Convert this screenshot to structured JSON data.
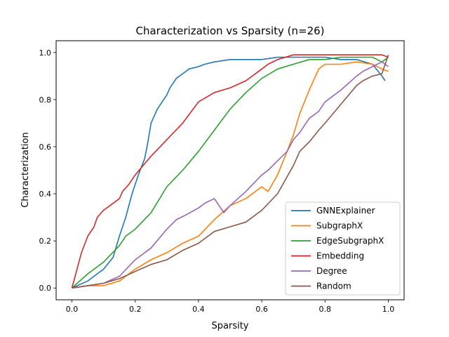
{
  "chart_data": {
    "type": "line",
    "title": "Characterization vs Sparsity (n=26)",
    "xlabel": "Sparsity",
    "ylabel": "Characterization",
    "xlim": [
      -0.05,
      1.05
    ],
    "ylim": [
      -0.05,
      1.05
    ],
    "xticks": [
      0.0,
      0.2,
      0.4,
      0.6,
      0.8,
      1.0
    ],
    "xtick_labels": [
      "0.0",
      "0.2",
      "0.4",
      "0.6",
      "0.8",
      "1.0"
    ],
    "yticks": [
      0.0,
      0.2,
      0.4,
      0.6,
      0.8,
      1.0
    ],
    "ytick_labels": [
      "0.0",
      "0.2",
      "0.4",
      "0.6",
      "0.8",
      "1.0"
    ],
    "grid": false,
    "legend_position": "lower right",
    "series": [
      {
        "name": "GNNExplainer",
        "color": "#1f77b4",
        "x": [
          0.0,
          0.05,
          0.1,
          0.13,
          0.15,
          0.17,
          0.19,
          0.21,
          0.23,
          0.24,
          0.25,
          0.26,
          0.27,
          0.28,
          0.3,
          0.31,
          0.33,
          0.35,
          0.37,
          0.4,
          0.42,
          0.45,
          0.5,
          0.55,
          0.6,
          0.65,
          0.7,
          0.75,
          0.8,
          0.85,
          0.9,
          0.95,
          0.98,
          0.99
        ],
        "y": [
          0.0,
          0.03,
          0.08,
          0.13,
          0.22,
          0.3,
          0.4,
          0.48,
          0.55,
          0.62,
          0.7,
          0.73,
          0.76,
          0.78,
          0.82,
          0.85,
          0.89,
          0.91,
          0.93,
          0.94,
          0.95,
          0.96,
          0.97,
          0.97,
          0.97,
          0.98,
          0.98,
          0.98,
          0.98,
          0.97,
          0.97,
          0.95,
          0.9,
          0.88
        ]
      },
      {
        "name": "SubgraphX",
        "color": "#ff7f0e",
        "x": [
          0.0,
          0.05,
          0.1,
          0.15,
          0.2,
          0.25,
          0.3,
          0.35,
          0.4,
          0.45,
          0.5,
          0.55,
          0.6,
          0.62,
          0.65,
          0.68,
          0.7,
          0.72,
          0.75,
          0.78,
          0.8,
          0.85,
          0.9,
          0.95,
          0.98,
          1.0
        ],
        "y": [
          0.0,
          0.01,
          0.01,
          0.03,
          0.08,
          0.12,
          0.15,
          0.19,
          0.22,
          0.29,
          0.35,
          0.38,
          0.43,
          0.41,
          0.48,
          0.58,
          0.65,
          0.74,
          0.84,
          0.93,
          0.95,
          0.95,
          0.96,
          0.95,
          0.93,
          0.92
        ]
      },
      {
        "name": "EdgeSubgraphX",
        "color": "#2ca02c",
        "x": [
          0.0,
          0.05,
          0.1,
          0.15,
          0.17,
          0.2,
          0.25,
          0.3,
          0.35,
          0.4,
          0.45,
          0.5,
          0.55,
          0.6,
          0.65,
          0.7,
          0.75,
          0.8,
          0.85,
          0.9,
          0.95,
          0.98,
          1.0
        ],
        "y": [
          0.0,
          0.06,
          0.11,
          0.18,
          0.22,
          0.25,
          0.32,
          0.43,
          0.5,
          0.58,
          0.67,
          0.76,
          0.83,
          0.89,
          0.93,
          0.95,
          0.97,
          0.97,
          0.98,
          0.98,
          0.98,
          0.96,
          0.98
        ]
      },
      {
        "name": "Embedding",
        "color": "#d62728",
        "x": [
          0.0,
          0.01,
          0.02,
          0.03,
          0.05,
          0.07,
          0.08,
          0.1,
          0.12,
          0.15,
          0.16,
          0.18,
          0.2,
          0.25,
          0.3,
          0.35,
          0.4,
          0.45,
          0.5,
          0.55,
          0.6,
          0.62,
          0.65,
          0.7,
          0.75,
          0.8,
          0.85,
          0.9,
          0.95,
          0.98,
          1.0
        ],
        "y": [
          0.0,
          0.05,
          0.1,
          0.15,
          0.22,
          0.26,
          0.3,
          0.33,
          0.35,
          0.38,
          0.41,
          0.44,
          0.48,
          0.56,
          0.63,
          0.7,
          0.79,
          0.83,
          0.85,
          0.88,
          0.93,
          0.95,
          0.97,
          0.99,
          0.99,
          0.99,
          0.99,
          0.99,
          0.99,
          0.99,
          0.98
        ]
      },
      {
        "name": "Degree",
        "color": "#9467bd",
        "x": [
          0.0,
          0.05,
          0.1,
          0.15,
          0.2,
          0.25,
          0.3,
          0.33,
          0.36,
          0.4,
          0.42,
          0.45,
          0.48,
          0.5,
          0.55,
          0.6,
          0.62,
          0.65,
          0.68,
          0.7,
          0.72,
          0.75,
          0.78,
          0.8,
          0.85,
          0.9,
          0.92,
          0.95,
          0.98,
          1.0
        ],
        "y": [
          0.0,
          0.01,
          0.02,
          0.05,
          0.12,
          0.17,
          0.25,
          0.29,
          0.31,
          0.34,
          0.36,
          0.38,
          0.32,
          0.35,
          0.41,
          0.48,
          0.5,
          0.54,
          0.58,
          0.63,
          0.66,
          0.72,
          0.75,
          0.79,
          0.84,
          0.9,
          0.92,
          0.94,
          0.96,
          0.94
        ]
      },
      {
        "name": "Random",
        "color": "#8c564b",
        "x": [
          0.0,
          0.05,
          0.1,
          0.15,
          0.2,
          0.25,
          0.3,
          0.35,
          0.4,
          0.45,
          0.5,
          0.55,
          0.6,
          0.65,
          0.7,
          0.72,
          0.75,
          0.78,
          0.8,
          0.85,
          0.9,
          0.92,
          0.95,
          0.98,
          1.0
        ],
        "y": [
          0.0,
          0.01,
          0.02,
          0.04,
          0.07,
          0.1,
          0.12,
          0.16,
          0.19,
          0.24,
          0.26,
          0.28,
          0.33,
          0.4,
          0.52,
          0.58,
          0.62,
          0.67,
          0.7,
          0.78,
          0.86,
          0.88,
          0.9,
          0.91,
          0.99
        ]
      }
    ]
  }
}
